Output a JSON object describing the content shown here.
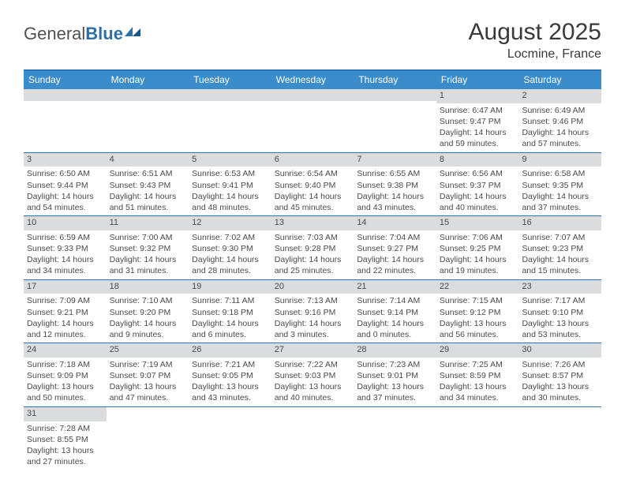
{
  "logo": {
    "general": "General",
    "blue": "Blue"
  },
  "title": "August 2025",
  "location": "Locmine, France",
  "colors": {
    "header_bg": "#3a8cca",
    "border": "#2a74b6",
    "daynum_bg": "#dadcde",
    "text": "#4a4a4a"
  },
  "day_headers": [
    "Sunday",
    "Monday",
    "Tuesday",
    "Wednesday",
    "Thursday",
    "Friday",
    "Saturday"
  ],
  "weeks": [
    [
      {
        "n": "",
        "s": "",
        "ss": "",
        "d": ""
      },
      {
        "n": "",
        "s": "",
        "ss": "",
        "d": ""
      },
      {
        "n": "",
        "s": "",
        "ss": "",
        "d": ""
      },
      {
        "n": "",
        "s": "",
        "ss": "",
        "d": ""
      },
      {
        "n": "",
        "s": "",
        "ss": "",
        "d": ""
      },
      {
        "n": "1",
        "s": "Sunrise: 6:47 AM",
        "ss": "Sunset: 9:47 PM",
        "d": "Daylight: 14 hours and 59 minutes."
      },
      {
        "n": "2",
        "s": "Sunrise: 6:49 AM",
        "ss": "Sunset: 9:46 PM",
        "d": "Daylight: 14 hours and 57 minutes."
      }
    ],
    [
      {
        "n": "3",
        "s": "Sunrise: 6:50 AM",
        "ss": "Sunset: 9:44 PM",
        "d": "Daylight: 14 hours and 54 minutes."
      },
      {
        "n": "4",
        "s": "Sunrise: 6:51 AM",
        "ss": "Sunset: 9:43 PM",
        "d": "Daylight: 14 hours and 51 minutes."
      },
      {
        "n": "5",
        "s": "Sunrise: 6:53 AM",
        "ss": "Sunset: 9:41 PM",
        "d": "Daylight: 14 hours and 48 minutes."
      },
      {
        "n": "6",
        "s": "Sunrise: 6:54 AM",
        "ss": "Sunset: 9:40 PM",
        "d": "Daylight: 14 hours and 45 minutes."
      },
      {
        "n": "7",
        "s": "Sunrise: 6:55 AM",
        "ss": "Sunset: 9:38 PM",
        "d": "Daylight: 14 hours and 43 minutes."
      },
      {
        "n": "8",
        "s": "Sunrise: 6:56 AM",
        "ss": "Sunset: 9:37 PM",
        "d": "Daylight: 14 hours and 40 minutes."
      },
      {
        "n": "9",
        "s": "Sunrise: 6:58 AM",
        "ss": "Sunset: 9:35 PM",
        "d": "Daylight: 14 hours and 37 minutes."
      }
    ],
    [
      {
        "n": "10",
        "s": "Sunrise: 6:59 AM",
        "ss": "Sunset: 9:33 PM",
        "d": "Daylight: 14 hours and 34 minutes."
      },
      {
        "n": "11",
        "s": "Sunrise: 7:00 AM",
        "ss": "Sunset: 9:32 PM",
        "d": "Daylight: 14 hours and 31 minutes."
      },
      {
        "n": "12",
        "s": "Sunrise: 7:02 AM",
        "ss": "Sunset: 9:30 PM",
        "d": "Daylight: 14 hours and 28 minutes."
      },
      {
        "n": "13",
        "s": "Sunrise: 7:03 AM",
        "ss": "Sunset: 9:28 PM",
        "d": "Daylight: 14 hours and 25 minutes."
      },
      {
        "n": "14",
        "s": "Sunrise: 7:04 AM",
        "ss": "Sunset: 9:27 PM",
        "d": "Daylight: 14 hours and 22 minutes."
      },
      {
        "n": "15",
        "s": "Sunrise: 7:06 AM",
        "ss": "Sunset: 9:25 PM",
        "d": "Daylight: 14 hours and 19 minutes."
      },
      {
        "n": "16",
        "s": "Sunrise: 7:07 AM",
        "ss": "Sunset: 9:23 PM",
        "d": "Daylight: 14 hours and 15 minutes."
      }
    ],
    [
      {
        "n": "17",
        "s": "Sunrise: 7:09 AM",
        "ss": "Sunset: 9:21 PM",
        "d": "Daylight: 14 hours and 12 minutes."
      },
      {
        "n": "18",
        "s": "Sunrise: 7:10 AM",
        "ss": "Sunset: 9:20 PM",
        "d": "Daylight: 14 hours and 9 minutes."
      },
      {
        "n": "19",
        "s": "Sunrise: 7:11 AM",
        "ss": "Sunset: 9:18 PM",
        "d": "Daylight: 14 hours and 6 minutes."
      },
      {
        "n": "20",
        "s": "Sunrise: 7:13 AM",
        "ss": "Sunset: 9:16 PM",
        "d": "Daylight: 14 hours and 3 minutes."
      },
      {
        "n": "21",
        "s": "Sunrise: 7:14 AM",
        "ss": "Sunset: 9:14 PM",
        "d": "Daylight: 14 hours and 0 minutes."
      },
      {
        "n": "22",
        "s": "Sunrise: 7:15 AM",
        "ss": "Sunset: 9:12 PM",
        "d": "Daylight: 13 hours and 56 minutes."
      },
      {
        "n": "23",
        "s": "Sunrise: 7:17 AM",
        "ss": "Sunset: 9:10 PM",
        "d": "Daylight: 13 hours and 53 minutes."
      }
    ],
    [
      {
        "n": "24",
        "s": "Sunrise: 7:18 AM",
        "ss": "Sunset: 9:09 PM",
        "d": "Daylight: 13 hours and 50 minutes."
      },
      {
        "n": "25",
        "s": "Sunrise: 7:19 AM",
        "ss": "Sunset: 9:07 PM",
        "d": "Daylight: 13 hours and 47 minutes."
      },
      {
        "n": "26",
        "s": "Sunrise: 7:21 AM",
        "ss": "Sunset: 9:05 PM",
        "d": "Daylight: 13 hours and 43 minutes."
      },
      {
        "n": "27",
        "s": "Sunrise: 7:22 AM",
        "ss": "Sunset: 9:03 PM",
        "d": "Daylight: 13 hours and 40 minutes."
      },
      {
        "n": "28",
        "s": "Sunrise: 7:23 AM",
        "ss": "Sunset: 9:01 PM",
        "d": "Daylight: 13 hours and 37 minutes."
      },
      {
        "n": "29",
        "s": "Sunrise: 7:25 AM",
        "ss": "Sunset: 8:59 PM",
        "d": "Daylight: 13 hours and 34 minutes."
      },
      {
        "n": "30",
        "s": "Sunrise: 7:26 AM",
        "ss": "Sunset: 8:57 PM",
        "d": "Daylight: 13 hours and 30 minutes."
      }
    ],
    [
      {
        "n": "31",
        "s": "Sunrise: 7:28 AM",
        "ss": "Sunset: 8:55 PM",
        "d": "Daylight: 13 hours and 27 minutes."
      },
      {
        "n": "",
        "s": "",
        "ss": "",
        "d": ""
      },
      {
        "n": "",
        "s": "",
        "ss": "",
        "d": ""
      },
      {
        "n": "",
        "s": "",
        "ss": "",
        "d": ""
      },
      {
        "n": "",
        "s": "",
        "ss": "",
        "d": ""
      },
      {
        "n": "",
        "s": "",
        "ss": "",
        "d": ""
      },
      {
        "n": "",
        "s": "",
        "ss": "",
        "d": ""
      }
    ]
  ]
}
